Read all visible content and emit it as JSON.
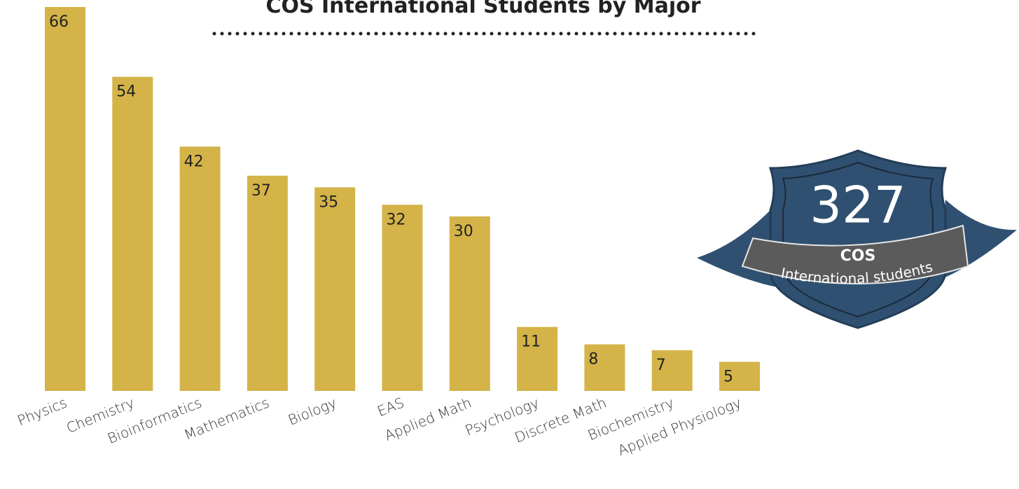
{
  "chart_data": {
    "type": "bar",
    "title": "COS International Students by Major",
    "categories": [
      "Physics",
      "Chemistry",
      "Bioinformatics",
      "Mathematics",
      "Biology",
      "EAS",
      "Applied Math",
      "Psychology",
      "Discrete Math",
      "Biochemistry",
      "Applied Physiology"
    ],
    "values": [
      66,
      54,
      42,
      37,
      35,
      32,
      30,
      11,
      8,
      7,
      5
    ],
    "color": "#d4b448",
    "badge": {
      "total": 327,
      "line1": "COS",
      "line2": "International students"
    }
  }
}
